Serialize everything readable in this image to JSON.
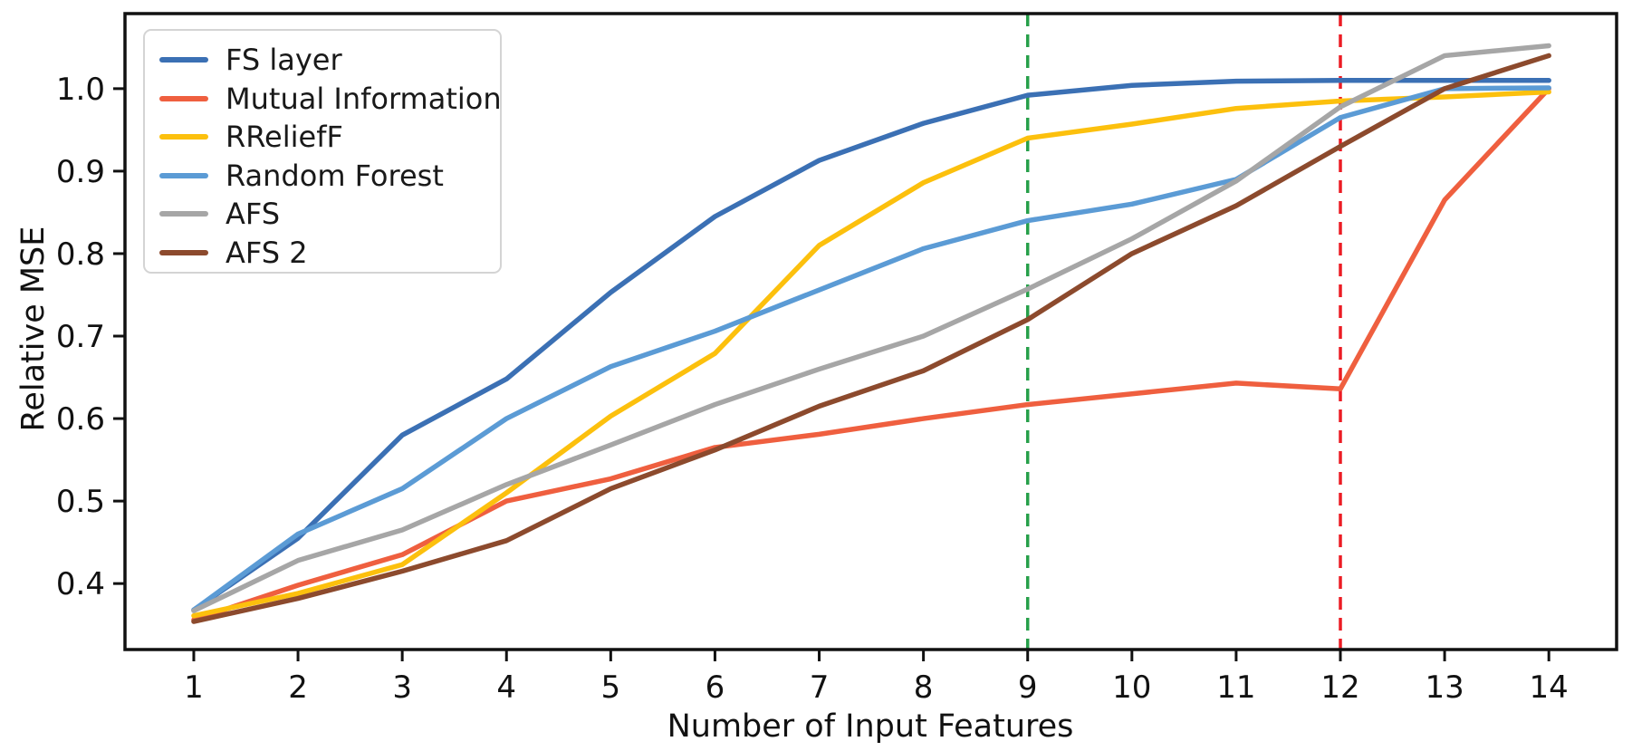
{
  "figure": {
    "background": "#ffffff",
    "spine_color": "#111111",
    "tick_color": "#111111"
  },
  "chart_data": {
    "type": "line",
    "title": "",
    "xlabel": "Number of Input Features",
    "ylabel": "Relative MSE",
    "x": [
      1,
      2,
      3,
      4,
      5,
      6,
      7,
      8,
      9,
      10,
      11,
      12,
      13,
      14
    ],
    "x_ticks": [
      "1",
      "2",
      "3",
      "4",
      "5",
      "6",
      "7",
      "8",
      "9",
      "10",
      "11",
      "12",
      "13",
      "14"
    ],
    "y_ticks": [
      "0.4",
      "0.5",
      "0.6",
      "0.7",
      "0.8",
      "0.9",
      "1.0"
    ],
    "y_tick_values": [
      0.4,
      0.5,
      0.6,
      0.7,
      0.8,
      0.9,
      1.0
    ],
    "xlim": [
      0.34,
      14.65
    ],
    "ylim": [
      0.32,
      1.091
    ],
    "grid": false,
    "legend_position": "upper left",
    "series": [
      {
        "name": "FS layer",
        "color": "#3b70b4",
        "values": [
          0.368,
          0.455,
          0.58,
          0.648,
          0.753,
          0.845,
          0.913,
          0.958,
          0.992,
          1.004,
          1.009,
          1.01,
          1.01,
          1.01
        ]
      },
      {
        "name": "Mutual Information",
        "color": "#ef5f3f",
        "values": [
          0.356,
          0.398,
          0.435,
          0.5,
          0.527,
          0.565,
          0.581,
          0.6,
          0.617,
          0.63,
          0.643,
          0.636,
          0.865,
          1.0
        ]
      },
      {
        "name": "RReliefF",
        "color": "#fcc00d",
        "values": [
          0.361,
          0.388,
          0.423,
          0.51,
          0.603,
          0.679,
          0.81,
          0.886,
          0.94,
          0.957,
          0.976,
          0.985,
          0.99,
          0.996
        ]
      },
      {
        "name": "Random Forest",
        "color": "#5b9bd5",
        "values": [
          0.368,
          0.46,
          0.515,
          0.6,
          0.663,
          0.706,
          0.756,
          0.806,
          0.84,
          0.86,
          0.89,
          0.965,
          1.0,
          1.001
        ]
      },
      {
        "name": "AFS",
        "color": "#a6a6a6",
        "values": [
          0.367,
          0.428,
          0.465,
          0.52,
          0.568,
          0.617,
          0.66,
          0.7,
          0.757,
          0.818,
          0.888,
          0.978,
          1.04,
          1.052
        ]
      },
      {
        "name": "AFS 2",
        "color": "#8c4a2d",
        "values": [
          0.354,
          0.382,
          0.415,
          0.452,
          0.515,
          0.562,
          0.615,
          0.658,
          0.72,
          0.8,
          0.858,
          0.93,
          1.0,
          1.04
        ]
      }
    ],
    "vlines": [
      {
        "x": 9,
        "color": "#27a04a",
        "style": "dashed"
      },
      {
        "x": 12,
        "color": "#ec1c24",
        "style": "dashed"
      }
    ]
  }
}
